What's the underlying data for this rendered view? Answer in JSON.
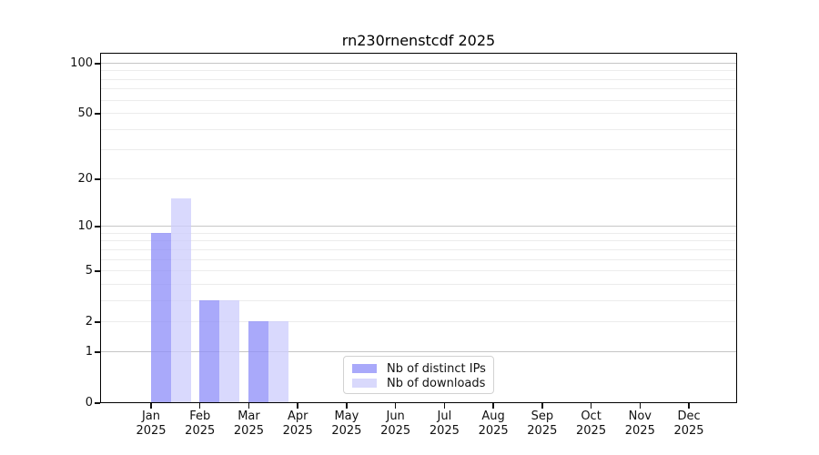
{
  "chart_data": {
    "type": "bar",
    "title": "rn230rnenstcdf 2025",
    "x_axis": {
      "year": "2025",
      "months": [
        "Jan",
        "Feb",
        "Mar",
        "Apr",
        "May",
        "Jun",
        "Jul",
        "Aug",
        "Sep",
        "Oct",
        "Nov",
        "Dec"
      ]
    },
    "y_axis": {
      "scale": "log10(value+1)",
      "tick_labels": [
        0,
        1,
        2,
        5,
        10,
        20,
        50,
        100
      ],
      "gridlines_major": [
        1,
        10,
        100
      ],
      "gridlines_minor": [
        2,
        3,
        4,
        5,
        6,
        7,
        8,
        9,
        20,
        30,
        40,
        50,
        60,
        70,
        80,
        90
      ],
      "ylim": [
        0,
        113
      ],
      "grid": "on"
    },
    "series": [
      {
        "name": "Nb of distinct IPs",
        "color": "#8c8cf8",
        "legend_color": "#a9a9fa",
        "alpha": 0.75,
        "values": [
          9,
          3,
          2,
          0,
          0,
          0,
          0,
          0,
          0,
          0,
          0,
          0
        ]
      },
      {
        "name": "Nb of downloads",
        "color": "#ccccfc",
        "legend_color": "#d9d9fc",
        "alpha": 0.75,
        "values": [
          15,
          3,
          2,
          0,
          0,
          0,
          0,
          0,
          0,
          0,
          0,
          0
        ]
      }
    ],
    "legend": {
      "position": "lower-center",
      "items": [
        "Nb of distinct IPs",
        "Nb of downloads"
      ]
    }
  }
}
